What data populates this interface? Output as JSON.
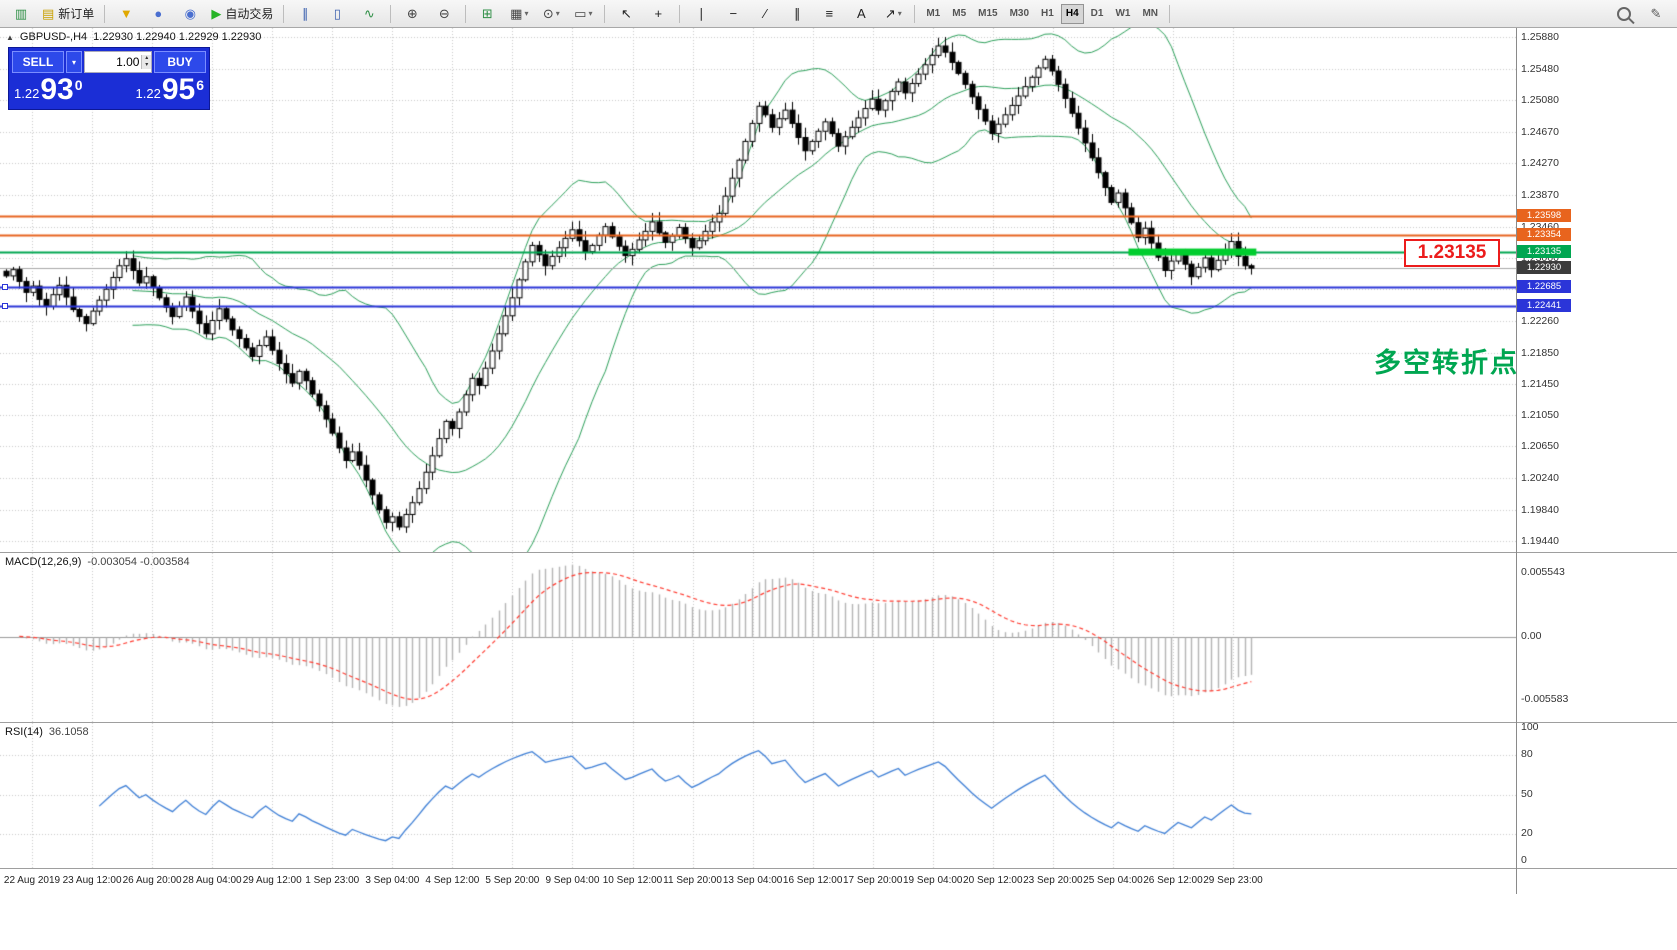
{
  "toolbar": {
    "dropdown_caret": "▾",
    "items": [
      {
        "type": "icon",
        "name": "chart-window-icon",
        "glyph": "▥",
        "color": "#2f8f46"
      },
      {
        "type": "labeled",
        "name": "new-order-button",
        "glyph": "▤",
        "glyph_color": "#c8a000",
        "label": "新订单"
      },
      {
        "type": "sep"
      },
      {
        "type": "icon",
        "name": "market-watch-icon",
        "glyph": "▼",
        "color": "#e0a800"
      },
      {
        "type": "icon",
        "name": "profile-icon",
        "glyph": "●",
        "color": "#4a6fd0"
      },
      {
        "type": "icon",
        "name": "community-icon",
        "glyph": "◉",
        "color": "#4a6fd0"
      },
      {
        "type": "labeled",
        "name": "autotrade-button",
        "glyph": "▶",
        "glyph_color": "#27b327",
        "label": "自动交易"
      },
      {
        "type": "sep"
      },
      {
        "type": "icon",
        "name": "bar-chart-icon",
        "glyph": "∥",
        "color": "#3a5fae"
      },
      {
        "type": "icon",
        "name": "candlestick-chart-icon",
        "glyph": "▯",
        "color": "#3a5fae"
      },
      {
        "type": "icon",
        "name": "line-chart-icon",
        "glyph": "∿",
        "color": "#2f8f46"
      },
      {
        "type": "sep"
      },
      {
        "type": "icon",
        "name": "zoom-in-icon",
        "glyph": "⊕",
        "color": "#444444"
      },
      {
        "type": "icon",
        "name": "zoom-out-icon",
        "glyph": "⊖",
        "color": "#444444"
      },
      {
        "type": "sep"
      },
      {
        "type": "icon",
        "name": "tile-windows-icon",
        "glyph": "⊞",
        "color": "#2f8f46"
      },
      {
        "type": "dropdown",
        "name": "new-chart-icon",
        "glyph": "▦",
        "color": "#444444"
      },
      {
        "type": "dropdown",
        "name": "auto-scroll-icon",
        "glyph": "⊙",
        "color": "#444444"
      },
      {
        "type": "dropdown",
        "name": "chart-shift-icon",
        "glyph": "▭",
        "color": "#444444"
      },
      {
        "type": "sep"
      },
      {
        "type": "icon",
        "name": "cursor-icon",
        "glyph": "↖",
        "color": "#222222"
      },
      {
        "type": "icon",
        "name": "crosshair-icon",
        "glyph": "+",
        "color": "#222222"
      },
      {
        "type": "sep"
      },
      {
        "type": "icon",
        "name": "vertical-line-icon",
        "glyph": "∣",
        "color": "#222222"
      },
      {
        "type": "icon",
        "name": "horizontal-line-icon",
        "glyph": "−",
        "color": "#222222"
      },
      {
        "type": "icon",
        "name": "trendline-icon",
        "glyph": "∕",
        "color": "#222222"
      },
      {
        "type": "icon",
        "name": "equidistant-channel-icon",
        "glyph": "∥",
        "color": "#222222"
      },
      {
        "type": "icon",
        "name": "fibonacci-icon",
        "glyph": "≡",
        "color": "#222222"
      },
      {
        "type": "icon",
        "name": "text-label-icon",
        "glyph": "A",
        "color": "#222222"
      },
      {
        "type": "dropdown",
        "name": "arrows-icon",
        "glyph": "↗",
        "color": "#222222"
      },
      {
        "type": "sep"
      },
      {
        "type": "tf-group"
      },
      {
        "type": "sep"
      },
      {
        "type": "spring"
      },
      {
        "type": "icon",
        "name": "search-icon",
        "css": "mag"
      },
      {
        "type": "icon",
        "name": "edit-post-icon",
        "glyph": "✎",
        "color": "#555555"
      }
    ],
    "timeframes": [
      "M1",
      "M5",
      "M15",
      "M30",
      "H1",
      "H4",
      "D1",
      "W1",
      "MN"
    ],
    "active_timeframe": "H4"
  },
  "chart": {
    "header": {
      "arrow": "▲",
      "symbol": "GBPUSD-,H4",
      "ohlc": "1.22930 1.22940 1.22929 1.22930"
    },
    "trade_panel": {
      "sell_label": "SELL",
      "buy_label": "BUY",
      "volume": "1.00",
      "caret": "▾",
      "vol_up": "▴",
      "vol_down": "▾",
      "sell_price": {
        "small": "1.22",
        "big": "93",
        "sup": "0"
      },
      "buy_price": {
        "small": "1.22",
        "big": "95",
        "sup": "6"
      }
    },
    "price_axis": [
      "1.25880",
      "1.25480",
      "1.25080",
      "1.24670",
      "1.24270",
      "1.23870",
      "1.23460",
      "1.23060",
      "1.22660",
      "1.22260",
      "1.21850",
      "1.21450",
      "1.21050",
      "1.20650",
      "1.20240",
      "1.19840",
      "1.19440"
    ],
    "time_axis": [
      "22 Aug 2019",
      "23 Aug 12:00",
      "26 Aug 20:00",
      "28 Aug 04:00",
      "29 Aug 12:00",
      "1 Sep 23:00",
      "3 Sep 04:00",
      "4 Sep 12:00",
      "5 Sep 20:00",
      "9 Sep 04:00",
      "10 Sep 12:00",
      "11 Sep 20:00",
      "13 Sep 04:00",
      "16 Sep 12:00",
      "17 Sep 20:00",
      "19 Sep 04:00",
      "20 Sep 12:00",
      "23 Sep 20:00",
      "25 Sep 04:00",
      "26 Sep 12:00",
      "29 Sep 23:00"
    ],
    "hlines": [
      {
        "price": 1.23598,
        "label": "1.23598",
        "color": "#e8641e",
        "width": 2
      },
      {
        "price": 1.23354,
        "label": "1.23354",
        "color": "#e8641e",
        "width": 2
      },
      {
        "price": 1.23135,
        "label": "1.23135",
        "color": "#00a651",
        "width": 2
      },
      {
        "price": 1.22685,
        "label": "1.22685",
        "color": "#2b35d8",
        "width": 2,
        "handle": true
      },
      {
        "price": 1.22441,
        "label": "1.22441",
        "color": "#2b35d8",
        "width": 2,
        "handle": true
      }
    ],
    "current_price_tag": {
      "price": 1.2293,
      "label": "1.22930",
      "color": "#3c3c3c"
    },
    "green_segment": {
      "price": 1.23135,
      "from_index": 169,
      "to_index": 187,
      "color": "#00cd2e",
      "thickness": 7
    },
    "callout": {
      "text": "1.23135",
      "color": "#ec1c1c"
    },
    "annotation": {
      "text": "多空转折点",
      "color": "#00a651"
    }
  },
  "macd": {
    "label": "MACD(12,26,9)",
    "values": "-0.003054 -0.003584",
    "axis": [
      {
        "label": "0.005543",
        "value": 0.005543
      },
      {
        "label": "0.00",
        "value": 0
      },
      {
        "label": "-0.005583",
        "value": -0.005583
      }
    ]
  },
  "rsi": {
    "label": "RSI(14)",
    "value": "36.1058",
    "axis": [
      {
        "label": "100",
        "value": 100
      },
      {
        "label": "80",
        "value": 80
      },
      {
        "label": "50",
        "value": 50
      },
      {
        "label": "20",
        "value": 20
      },
      {
        "label": "0",
        "value": 0
      }
    ],
    "levels": [
      80,
      50,
      20
    ]
  },
  "chart_data": {
    "type": "candlestick",
    "symbol": "GBPUSD",
    "timeframe": "H4",
    "price_range": [
      1.193,
      1.26
    ],
    "wick": 0.001,
    "colors": {
      "bollinger": "#2ca05a",
      "bull": "#ffffff",
      "bear": "#000000",
      "outline": "#000000",
      "macd_hist": "#b4b4b4",
      "macd_signal": "#ff3b30",
      "rsi": "#3e7fd6",
      "grid": "#c9c9c9"
    },
    "indicators": {
      "bollinger": {
        "period": 20,
        "deviation": 2
      },
      "macd": {
        "fast": 12,
        "slow": 26,
        "signal": 9
      },
      "rsi": {
        "period": 14
      }
    },
    "closes": [
      1.2283,
      1.2291,
      1.2276,
      1.2262,
      1.227,
      1.2253,
      1.2244,
      1.2259,
      1.2271,
      1.2256,
      1.224,
      1.2231,
      1.2222,
      1.2238,
      1.2252,
      1.2266,
      1.2281,
      1.2296,
      1.2305,
      1.229,
      1.2274,
      1.2282,
      1.2268,
      1.2255,
      1.2243,
      1.2231,
      1.2244,
      1.2256,
      1.2238,
      1.2222,
      1.2209,
      1.2226,
      1.2241,
      1.2228,
      1.2214,
      1.2203,
      1.2191,
      1.218,
      1.2194,
      1.2205,
      1.2188,
      1.2171,
      1.2158,
      1.2146,
      1.2161,
      1.2149,
      1.2132,
      1.2117,
      1.21,
      1.2082,
      1.2063,
      1.2047,
      1.2058,
      1.2041,
      1.2022,
      1.2003,
      1.1984,
      1.1968,
      1.1975,
      1.1962,
      1.1978,
      1.1993,
      1.2011,
      1.2032,
      1.2053,
      1.2075,
      1.2097,
      1.2088,
      1.2109,
      1.2131,
      1.2152,
      1.2143,
      1.2165,
      1.2187,
      1.2209,
      1.2232,
      1.2255,
      1.2278,
      1.2301,
      1.2322,
      1.231,
      1.2296,
      1.2308,
      1.2319,
      1.2331,
      1.2342,
      1.2328,
      1.2314,
      1.2322,
      1.2335,
      1.2346,
      1.2333,
      1.2321,
      1.2309,
      1.2317,
      1.2329,
      1.234,
      1.2352,
      1.2338,
      1.2326,
      1.2334,
      1.2345,
      1.2331,
      1.2319,
      1.2328,
      1.234,
      1.2352,
      1.2363,
      1.2385,
      1.2408,
      1.2431,
      1.2455,
      1.2478,
      1.25,
      1.2489,
      1.2473,
      1.2484,
      1.2495,
      1.2478,
      1.246,
      1.2443,
      1.2455,
      1.2468,
      1.248,
      1.2465,
      1.2449,
      1.2461,
      1.2473,
      1.2485,
      1.2497,
      1.2509,
      1.2495,
      1.2507,
      1.2519,
      1.2531,
      1.2517,
      1.2529,
      1.2541,
      1.2553,
      1.2565,
      1.2577,
      1.2569,
      1.2556,
      1.2542,
      1.2528,
      1.2512,
      1.2496,
      1.2481,
      1.2465,
      1.2477,
      1.2489,
      1.2501,
      1.2513,
      1.2525,
      1.2537,
      1.2549,
      1.256,
      1.2545,
      1.2528,
      1.251,
      1.2491,
      1.2472,
      1.2453,
      1.2434,
      1.2415,
      1.2396,
      1.2377,
      1.2389,
      1.237,
      1.2351,
      1.2332,
      1.2344,
      1.2325,
      1.2307,
      1.229,
      1.2302,
      1.2314,
      1.2298,
      1.2282,
      1.2294,
      1.2306,
      1.2291,
      1.2303,
      1.2315,
      1.2327,
      1.2308,
      1.2296,
      1.2293
    ]
  }
}
